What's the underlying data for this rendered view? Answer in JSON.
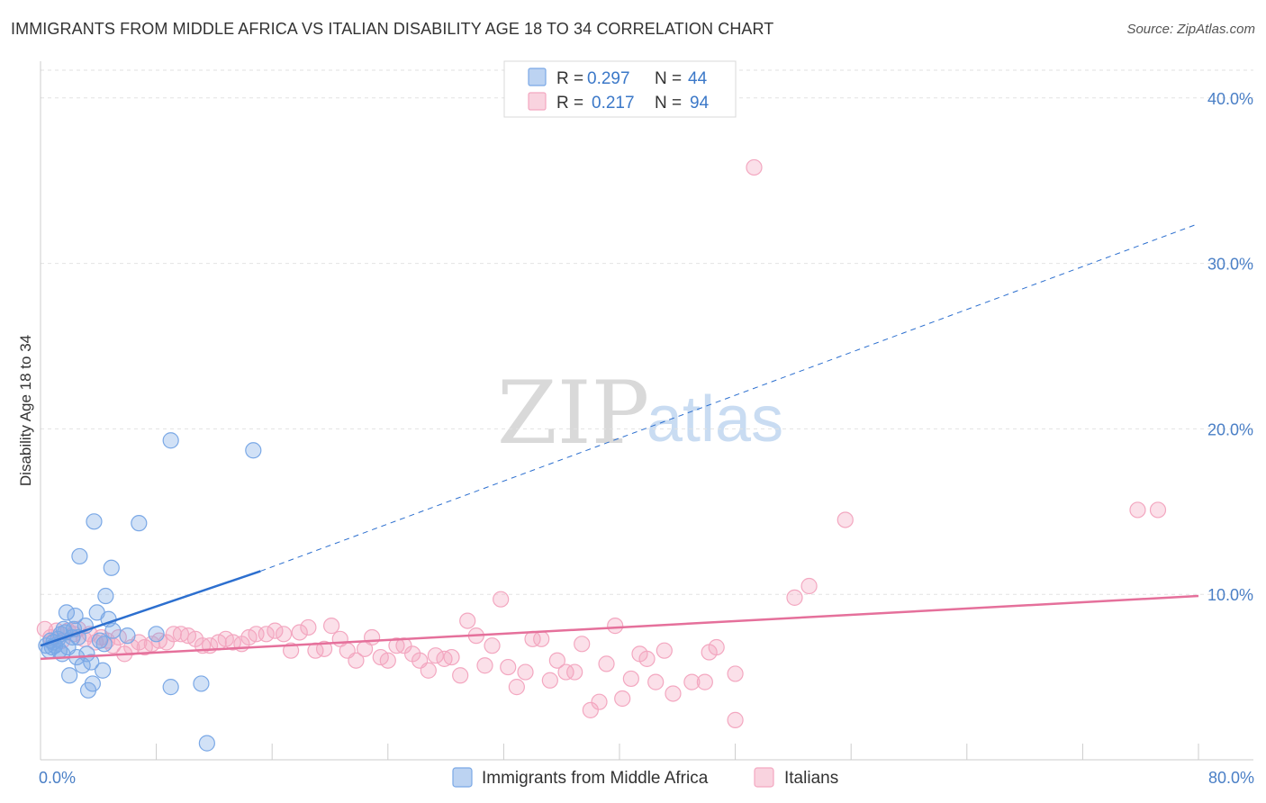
{
  "header": {
    "title": "IMMIGRANTS FROM MIDDLE AFRICA VS ITALIAN DISABILITY AGE 18 TO 34 CORRELATION CHART",
    "source": "Source: ZipAtlas.com"
  },
  "watermark": {
    "zip": "ZIP",
    "atlas": "atlas"
  },
  "legend": {
    "rows": [
      {
        "r_label": "R =",
        "r_value": "0.297",
        "n_label": "N =",
        "n_value": "44"
      },
      {
        "r_label": "R =",
        "r_value": "0.217",
        "n_label": "N =",
        "n_value": "94"
      }
    ]
  },
  "chart_data": {
    "type": "scatter",
    "title": "IMMIGRANTS FROM MIDDLE AFRICA VS ITALIAN DISABILITY AGE 18 TO 34 CORRELATION CHART",
    "xlabel": "",
    "ylabel": "Disability Age 18 to 34",
    "xlim": [
      0,
      80
    ],
    "ylim": [
      0,
      42
    ],
    "x_tick_labels": [
      "0.0%",
      "80.0%"
    ],
    "y_ticks": [
      10,
      20,
      30,
      40
    ],
    "y_tick_labels": [
      "10.0%",
      "20.0%",
      "30.0%",
      "40.0%"
    ],
    "grid": true,
    "legend_placement": "top-center",
    "series": [
      {
        "name": "Immigrants from Middle Africa",
        "color": "#7aa8e6",
        "line_color": "#2c6fcf",
        "trend": {
          "x0": 0,
          "y0": 6.9,
          "x1": 15.2,
          "y1": 11.4,
          "dash_to_x": 80,
          "dash_to_y": 32.4
        },
        "points": [
          [
            0.4,
            6.9
          ],
          [
            0.6,
            6.6
          ],
          [
            0.7,
            7.2
          ],
          [
            0.8,
            6.8
          ],
          [
            0.9,
            7.1
          ],
          [
            1.0,
            6.9
          ],
          [
            1.2,
            7.3
          ],
          [
            1.3,
            6.6
          ],
          [
            1.4,
            7.6
          ],
          [
            1.5,
            6.4
          ],
          [
            1.6,
            7.9
          ],
          [
            1.7,
            7.7
          ],
          [
            1.8,
            8.9
          ],
          [
            1.9,
            6.8
          ],
          [
            2.0,
            5.1
          ],
          [
            2.2,
            7.4
          ],
          [
            2.3,
            7.9
          ],
          [
            2.4,
            8.7
          ],
          [
            2.5,
            6.2
          ],
          [
            2.6,
            7.4
          ],
          [
            2.7,
            12.3
          ],
          [
            2.9,
            5.7
          ],
          [
            3.1,
            8.1
          ],
          [
            3.2,
            6.4
          ],
          [
            3.3,
            4.2
          ],
          [
            3.5,
            5.9
          ],
          [
            3.6,
            4.6
          ],
          [
            3.7,
            14.4
          ],
          [
            3.9,
            8.9
          ],
          [
            4.1,
            7.2
          ],
          [
            4.3,
            5.4
          ],
          [
            4.4,
            7.0
          ],
          [
            4.5,
            9.9
          ],
          [
            4.7,
            8.5
          ],
          [
            4.9,
            11.6
          ],
          [
            5.0,
            7.8
          ],
          [
            6.0,
            7.5
          ],
          [
            6.8,
            14.3
          ],
          [
            8.0,
            7.6
          ],
          [
            9.0,
            19.3
          ],
          [
            9.0,
            4.4
          ],
          [
            11.1,
            4.6
          ],
          [
            11.5,
            1.0
          ],
          [
            14.7,
            18.7
          ]
        ]
      },
      {
        "name": "Italians",
        "color": "#f3a7c0",
        "line_color": "#e5709b",
        "trend": {
          "x0": 0,
          "y0": 6.1,
          "x1": 80,
          "y1": 9.9
        },
        "points": [
          [
            0.3,
            7.9
          ],
          [
            0.7,
            7.4
          ],
          [
            1.1,
            7.8
          ],
          [
            1.5,
            7.2
          ],
          [
            1.9,
            7.8
          ],
          [
            2.3,
            7.6
          ],
          [
            2.6,
            7.9
          ],
          [
            3.0,
            7.3
          ],
          [
            3.4,
            7.6
          ],
          [
            3.8,
            7.1
          ],
          [
            4.2,
            7.4
          ],
          [
            4.6,
            7.2
          ],
          [
            5.0,
            6.9
          ],
          [
            5.4,
            7.4
          ],
          [
            5.8,
            6.4
          ],
          [
            6.3,
            6.8
          ],
          [
            6.8,
            7.1
          ],
          [
            7.2,
            6.8
          ],
          [
            7.7,
            7.0
          ],
          [
            8.2,
            7.2
          ],
          [
            8.7,
            7.1
          ],
          [
            9.2,
            7.6
          ],
          [
            9.7,
            7.6
          ],
          [
            10.2,
            7.5
          ],
          [
            10.7,
            7.3
          ],
          [
            11.2,
            6.9
          ],
          [
            11.7,
            6.9
          ],
          [
            12.3,
            7.1
          ],
          [
            12.8,
            7.3
          ],
          [
            13.3,
            7.1
          ],
          [
            13.9,
            7.0
          ],
          [
            14.4,
            7.4
          ],
          [
            14.9,
            7.6
          ],
          [
            15.6,
            7.6
          ],
          [
            16.2,
            7.8
          ],
          [
            16.8,
            7.6
          ],
          [
            17.3,
            6.6
          ],
          [
            17.9,
            7.7
          ],
          [
            18.5,
            8.0
          ],
          [
            19.0,
            6.6
          ],
          [
            19.6,
            6.7
          ],
          [
            20.1,
            8.1
          ],
          [
            20.7,
            7.3
          ],
          [
            21.2,
            6.6
          ],
          [
            21.8,
            6.0
          ],
          [
            22.4,
            6.7
          ],
          [
            22.9,
            7.4
          ],
          [
            23.5,
            6.2
          ],
          [
            24.0,
            6.0
          ],
          [
            24.6,
            6.9
          ],
          [
            25.1,
            6.9
          ],
          [
            25.7,
            6.4
          ],
          [
            26.2,
            6.0
          ],
          [
            26.8,
            5.4
          ],
          [
            27.3,
            6.3
          ],
          [
            27.9,
            6.1
          ],
          [
            28.4,
            6.2
          ],
          [
            29.0,
            5.1
          ],
          [
            29.5,
            8.4
          ],
          [
            30.1,
            7.5
          ],
          [
            30.7,
            5.7
          ],
          [
            31.2,
            6.9
          ],
          [
            31.8,
            9.7
          ],
          [
            32.3,
            5.6
          ],
          [
            32.9,
            4.4
          ],
          [
            33.5,
            5.3
          ],
          [
            34.0,
            7.3
          ],
          [
            34.6,
            7.3
          ],
          [
            35.2,
            4.8
          ],
          [
            35.7,
            6.0
          ],
          [
            36.3,
            5.3
          ],
          [
            36.9,
            5.3
          ],
          [
            37.4,
            7.0
          ],
          [
            38.0,
            3.0
          ],
          [
            38.6,
            3.5
          ],
          [
            39.1,
            5.8
          ],
          [
            39.7,
            8.1
          ],
          [
            40.2,
            3.7
          ],
          [
            40.8,
            4.9
          ],
          [
            41.4,
            6.4
          ],
          [
            41.9,
            6.1
          ],
          [
            42.5,
            4.7
          ],
          [
            43.1,
            6.6
          ],
          [
            43.7,
            4.0
          ],
          [
            45.0,
            4.7
          ],
          [
            45.9,
            4.7
          ],
          [
            46.2,
            6.5
          ],
          [
            46.7,
            6.8
          ],
          [
            48.0,
            5.2
          ],
          [
            48.0,
            2.4
          ],
          [
            49.3,
            35.8
          ],
          [
            52.1,
            9.8
          ],
          [
            53.1,
            10.5
          ],
          [
            55.6,
            14.5
          ],
          [
            75.8,
            15.1
          ],
          [
            77.2,
            15.1
          ]
        ]
      }
    ]
  }
}
